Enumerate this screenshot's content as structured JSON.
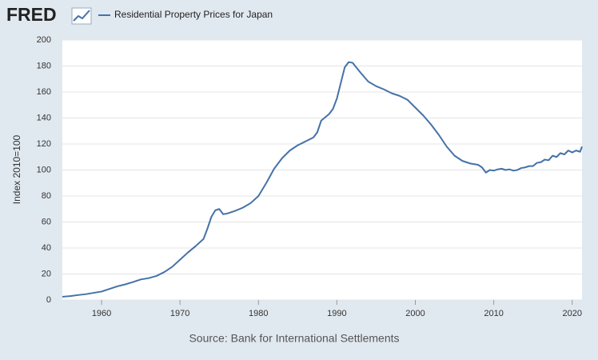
{
  "logo": "FRED",
  "chart_data": {
    "type": "line",
    "ylabel": "Index 2010=100",
    "source": "Source: Bank for International Settlements",
    "x": [
      1955,
      1956,
      1957,
      1958,
      1959,
      1960,
      1961,
      1962,
      1963,
      1964,
      1965,
      1966,
      1967,
      1968,
      1969,
      1970,
      1971,
      1972,
      1973,
      1973.5,
      1974,
      1974.5,
      1975,
      1975.5,
      1976,
      1977,
      1978,
      1979,
      1980,
      1981,
      1982,
      1983,
      1984,
      1985,
      1986,
      1987,
      1987.5,
      1988,
      1989,
      1989.5,
      1990,
      1990.5,
      1991,
      1991.5,
      1992,
      1993,
      1994,
      1995,
      1996,
      1997,
      1998,
      1999,
      2000,
      2001,
      2002,
      2003,
      2004,
      2005,
      2006,
      2007,
      2008,
      2008.5,
      2009,
      2009.5,
      2010,
      2010.5,
      2011,
      2011.5,
      2012,
      2012.5,
      2013,
      2013.5,
      2014,
      2014.5,
      2015,
      2015.5,
      2016,
      2016.5,
      2017,
      2017.5,
      2018,
      2018.5,
      2019,
      2019.5,
      2020,
      2020.5,
      2021,
      2021.25
    ],
    "series": [
      {
        "name": "Residential Property Prices for Japan",
        "color": "#4572a7",
        "values": [
          2.5,
          3,
          3.8,
          4.5,
          5.5,
          6.5,
          8.5,
          10.5,
          12,
          13.8,
          15.8,
          16.8,
          18.5,
          21.5,
          25.5,
          31,
          36.5,
          41.5,
          47,
          55,
          64,
          69,
          70,
          66,
          66.5,
          68.5,
          71,
          74.5,
          80,
          90,
          101,
          109,
          115,
          119,
          122,
          125,
          129,
          138,
          143,
          147,
          155,
          167,
          179,
          183,
          182.5,
          175,
          168,
          164.5,
          162,
          159,
          157,
          154,
          148,
          142,
          135,
          127,
          118,
          111,
          107,
          105,
          104,
          102,
          98,
          100,
          99.5,
          100.5,
          101,
          100,
          100.5,
          99.5,
          100,
          101.5,
          102,
          103,
          103,
          105.5,
          106,
          108,
          107.5,
          111,
          110,
          113,
          112,
          115,
          113.5,
          115,
          114,
          118
        ]
      }
    ],
    "xlim": [
      1955,
      2021.25
    ],
    "xticks": [
      1960,
      1970,
      1980,
      1990,
      2000,
      2010,
      2020
    ],
    "ylim": [
      0,
      200
    ],
    "yticks": [
      0,
      20,
      40,
      60,
      80,
      100,
      120,
      140,
      160,
      180,
      200
    ],
    "grid": true
  }
}
